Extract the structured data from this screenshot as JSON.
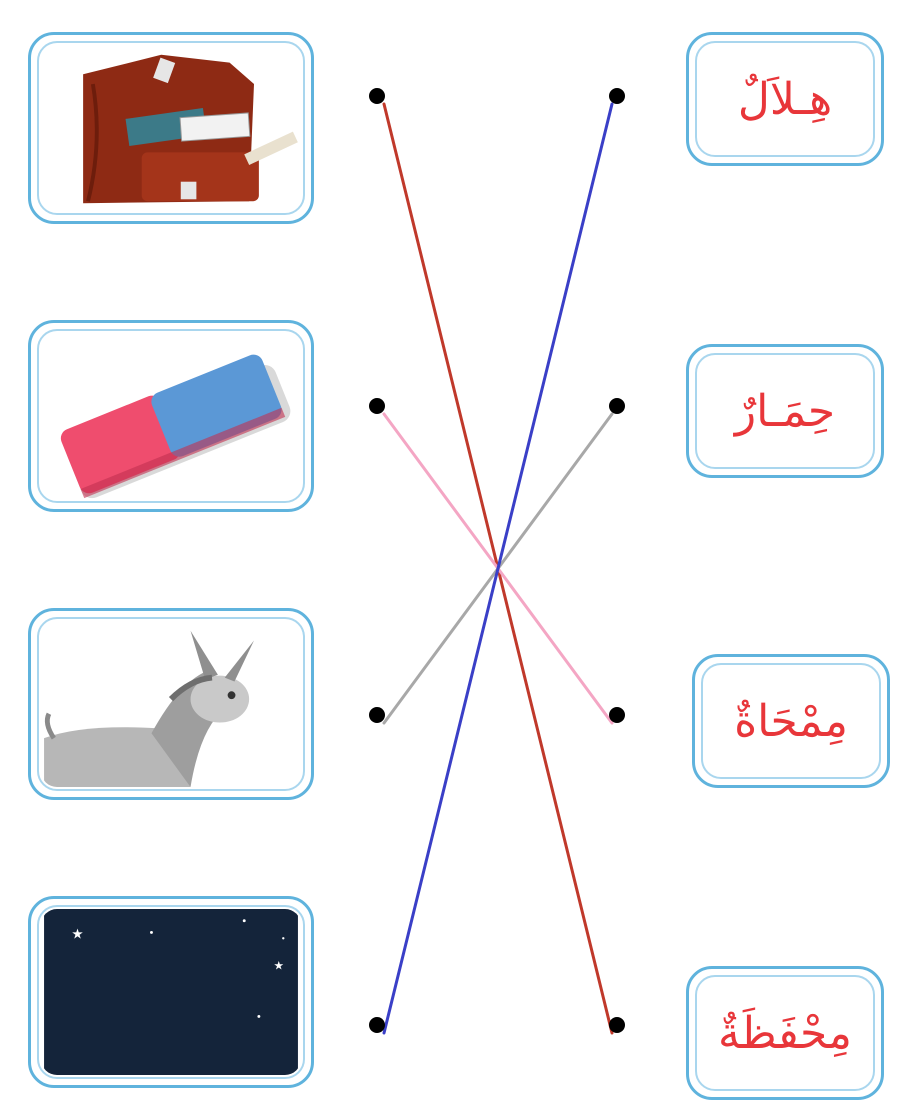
{
  "exercise": {
    "pictures": [
      {
        "id": "bag",
        "icon": "school-bag-icon"
      },
      {
        "id": "eraser",
        "icon": "eraser-icon"
      },
      {
        "id": "donkey",
        "icon": "donkey-icon"
      },
      {
        "id": "moon",
        "icon": "crescent-moon-icon"
      }
    ],
    "words": [
      "هِـلاَلٌ",
      "حِمَـارٌ",
      "مِمْحَاةٌ",
      "مِحْفَظَةٌ"
    ],
    "connections": [
      {
        "picture": 0,
        "word": 3,
        "color": "#c0392b"
      },
      {
        "picture": 1,
        "word": 2,
        "color": "#f4a6c4"
      },
      {
        "picture": 2,
        "word": 1,
        "color": "#a8a8a8"
      },
      {
        "picture": 3,
        "word": 0,
        "color": "#3a3fc7"
      }
    ],
    "colors": {
      "frame": "#5fb3dd",
      "word_text": "#e8363a",
      "dot": "#000000"
    }
  }
}
